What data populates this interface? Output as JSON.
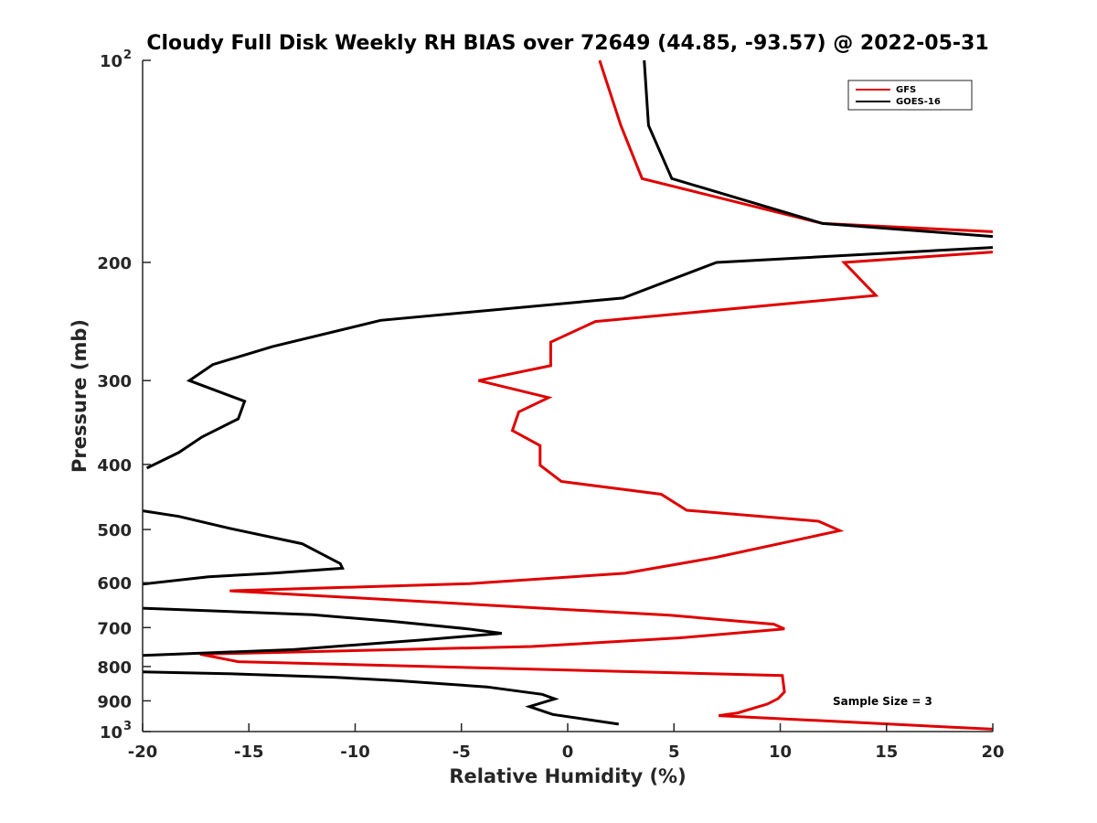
{
  "chart_data": {
    "type": "line",
    "title": "Cloudy Full Disk Weekly RH BIAS over 72649 (44.85, -93.57) @ 2022-05-31",
    "xlabel": "Relative Humidity (%)",
    "ylabel": "Pressure (mb)",
    "xlim": [
      -20,
      20
    ],
    "ylim": [
      100,
      1000
    ],
    "y_scale": "log",
    "y_reversed": true,
    "grid": false,
    "legend_position": "top-right",
    "x_ticks": [
      "-20",
      "-15",
      "-10",
      "-5",
      "0",
      "5",
      "10",
      "15",
      "20"
    ],
    "x_tick_values": [
      -20,
      -15,
      -10,
      -5,
      0,
      5,
      10,
      15,
      20
    ],
    "y_ticks": [
      {
        "value": 100,
        "base": "10",
        "exp": "2"
      },
      {
        "value": 200,
        "label": "200"
      },
      {
        "value": 300,
        "label": "300"
      },
      {
        "value": 400,
        "label": "400"
      },
      {
        "value": 500,
        "label": "500"
      },
      {
        "value": 600,
        "label": "600"
      },
      {
        "value": 700,
        "label": "700"
      },
      {
        "value": 800,
        "label": "800"
      },
      {
        "value": 900,
        "label": "900"
      },
      {
        "value": 1000,
        "base": "10",
        "exp": "3"
      }
    ],
    "annotation": "Sample Size = 3",
    "series": [
      {
        "name": "GFS",
        "color": "#e00000",
        "segments": [
          [
            [
              1.5,
              100
            ],
            [
              2.5,
              125
            ],
            [
              3.5,
              150
            ],
            [
              12,
              175
            ],
            [
              20,
              180
            ]
          ],
          [
            [
              20,
              193
            ],
            [
              13,
              200
            ],
            [
              14.5,
              224
            ],
            [
              1.3,
              245
            ],
            [
              -0.8,
              263
            ],
            [
              -0.8,
              285
            ],
            [
              -4.2,
              300
            ],
            [
              -0.9,
              318
            ],
            [
              -2.3,
              334
            ],
            [
              -2.6,
              356
            ],
            [
              -1.3,
              375
            ],
            [
              -1.3,
              401
            ],
            [
              -0.3,
              424
            ],
            [
              4.4,
              443
            ],
            [
              5.6,
              468
            ],
            [
              11.8,
              486
            ],
            [
              12.8,
              502
            ],
            [
              7,
              550
            ],
            [
              2.7,
              581
            ],
            [
              -4.6,
              602
            ],
            [
              -15.9,
              617
            ],
            [
              4.8,
              671
            ],
            [
              9.7,
              692
            ],
            [
              10.2,
              703
            ],
            [
              5.3,
              725
            ],
            [
              -1.7,
              747
            ],
            [
              -17.3,
              767
            ],
            [
              -15.5,
              787
            ],
            [
              10.1,
              825
            ],
            [
              10.2,
              873
            ],
            [
              9.9,
              893
            ],
            [
              9.4,
              910
            ],
            [
              8,
              938
            ],
            [
              7.1,
              947
            ],
            [
              20,
              992
            ]
          ]
        ]
      },
      {
        "name": "GOES-16",
        "color": "#000000",
        "segments": [
          [
            [
              3.6,
              100
            ],
            [
              3.8,
              125
            ],
            [
              4.9,
              150
            ],
            [
              12,
              175
            ],
            [
              20,
              183
            ]
          ],
          [
            [
              20,
              190
            ],
            [
              7,
              200
            ],
            [
              2.6,
              226
            ],
            [
              -8.8,
              244
            ],
            [
              -13.9,
              267
            ],
            [
              -16.7,
              284
            ],
            [
              -17.8,
              300
            ],
            [
              -15.2,
              322
            ],
            [
              -15.5,
              342
            ],
            [
              -17.2,
              364
            ],
            [
              -18.3,
              384
            ],
            [
              -19.8,
              405
            ]
          ],
          [
            [
              -20,
              469
            ],
            [
              -18.3,
              478
            ],
            [
              -15.9,
              498
            ],
            [
              -12.5,
              525
            ],
            [
              -10.7,
              562
            ],
            [
              -10.6,
              571
            ],
            [
              -13.9,
              581
            ],
            [
              -16.9,
              588
            ],
            [
              -20,
              603
            ]
          ],
          [
            [
              -20,
              655
            ],
            [
              -12,
              670
            ],
            [
              -8.3,
              685
            ],
            [
              -4.7,
              703
            ],
            [
              -3.1,
              714
            ],
            [
              -6.8,
              730
            ],
            [
              -12.9,
              755
            ],
            [
              -20,
              770
            ]
          ],
          [
            [
              -20,
              815
            ],
            [
              -16,
              820
            ],
            [
              -11,
              830
            ],
            [
              -8,
              840
            ],
            [
              -3.8,
              858
            ],
            [
              -1.2,
              880
            ],
            [
              -0.6,
              894
            ],
            [
              -1.8,
              918
            ],
            [
              -0.7,
              943
            ],
            [
              2.4,
              975
            ]
          ]
        ]
      }
    ]
  }
}
